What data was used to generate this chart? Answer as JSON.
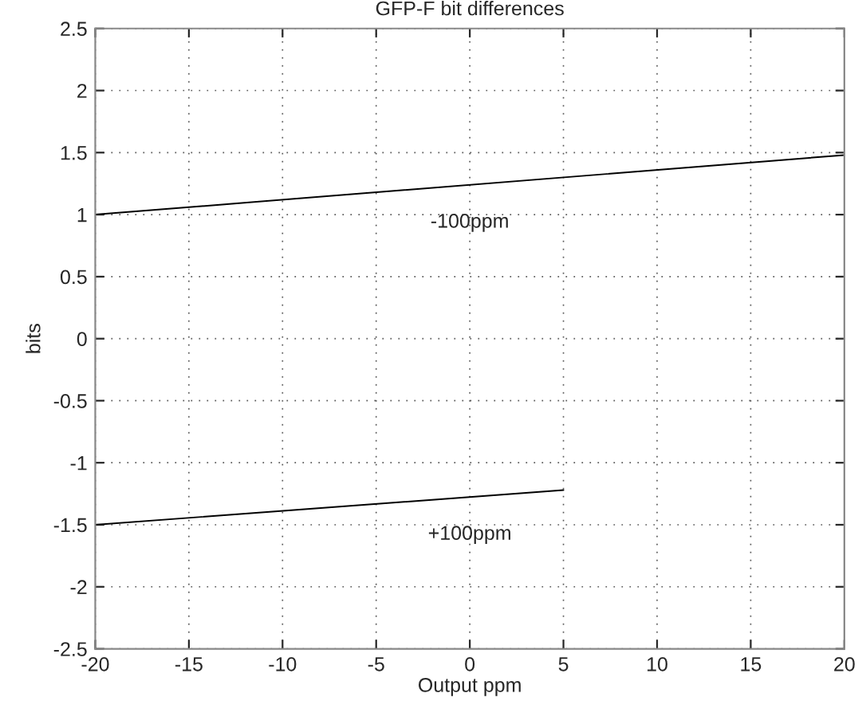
{
  "chart_data": {
    "type": "line",
    "title": "GFP-F bit differences",
    "xlabel": "Output ppm",
    "ylabel": "bits",
    "series": [
      {
        "name": "-100ppm",
        "x": [
          -20,
          20
        ],
        "values": [
          1.0,
          1.48
        ],
        "color": "#000000"
      },
      {
        "name": "+100ppm",
        "x": [
          -20,
          5
        ],
        "values": [
          -1.5,
          -1.22
        ],
        "color": "#000000"
      }
    ],
    "xlim": [
      -20,
      20
    ],
    "xticks": [
      -20,
      -15,
      -10,
      -5,
      0,
      5,
      10,
      15,
      20
    ],
    "ylim": [
      -2.5,
      2.5
    ],
    "yticks": [
      -2.5,
      -2,
      -1.5,
      -1,
      -0.5,
      0,
      0.5,
      1,
      1.5,
      2,
      2.5
    ],
    "grid": true,
    "line_style": "solid"
  }
}
